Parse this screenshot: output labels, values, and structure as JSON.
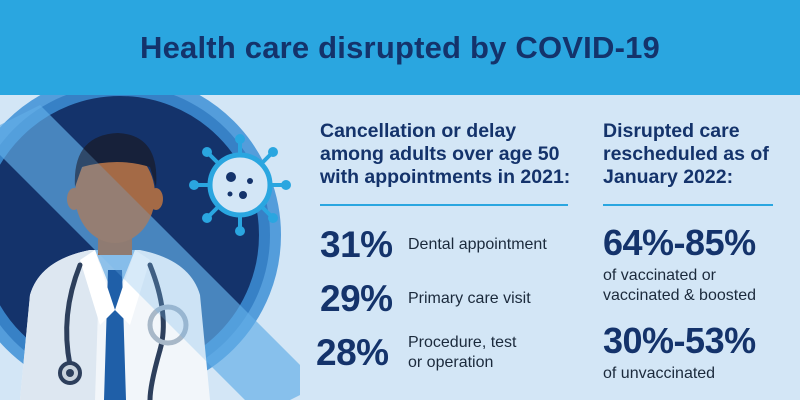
{
  "header": {
    "title": "Health care disrupted by COVID-19"
  },
  "left_column": {
    "title_lines": [
      "Cancellation or delay",
      "among adults over age 50",
      "with appointments in 2021:"
    ],
    "items": [
      {
        "value": "31%",
        "label_lines": [
          "Dental appointment"
        ]
      },
      {
        "value": "29%",
        "label_lines": [
          "Primary care visit"
        ]
      },
      {
        "value": "28%",
        "label_lines": [
          "Procedure, test",
          "or operation"
        ]
      }
    ]
  },
  "right_column": {
    "title_lines": [
      "Disrupted care",
      "rescheduled as of",
      "January 2022:"
    ],
    "items": [
      {
        "value": "64%-85%",
        "label_lines": [
          "of vaccinated or",
          "vaccinated & boosted"
        ]
      },
      {
        "value": "30%-53%",
        "label_lines": [
          "of unvaccinated"
        ]
      }
    ]
  },
  "illustration": {
    "icons": [
      "doctor-figure",
      "virus-icon",
      "stethoscope-icon"
    ],
    "colors": {
      "navy": "#14336b",
      "sky": "#2aa6e0",
      "pale": "#d3e6f6"
    }
  }
}
